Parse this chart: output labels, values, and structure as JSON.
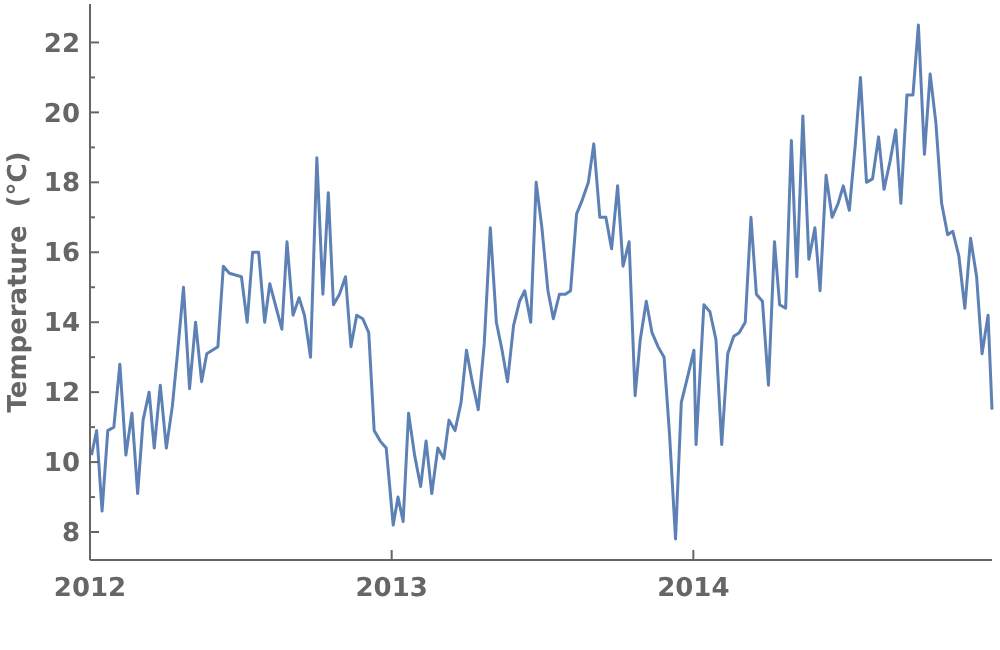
{
  "chart_data": {
    "type": "line",
    "ylabel": "Temperature  (°C)",
    "xlim": [
      2012,
      2014.99
    ],
    "xticks": [
      2012,
      2013,
      2014
    ],
    "ylim": [
      7.2,
      23.1
    ],
    "yticks": [
      8,
      {
        "value": 9,
        "label": null
      },
      10,
      {
        "value": 11,
        "label": null
      },
      12,
      {
        "value": 13,
        "label": null
      },
      14,
      {
        "value": 15,
        "label": null
      },
      16,
      {
        "value": 17,
        "label": null
      },
      18,
      {
        "value": 19,
        "label": null
      },
      20,
      {
        "value": 21,
        "label": null
      },
      22
    ],
    "series": [
      {
        "color": "#5e81b5",
        "x": [
          2012.005,
          2012.022,
          2012.04,
          2012.059,
          2012.079,
          2012.099,
          2012.119,
          2012.139,
          2012.158,
          2012.176,
          2012.196,
          2012.213,
          2012.233,
          2012.253,
          2012.273,
          2012.29,
          2012.31,
          2012.33,
          2012.35,
          2012.37,
          2012.387,
          2012.424,
          2012.442,
          2012.462,
          2012.502,
          2012.521,
          2012.539,
          2012.559,
          2012.579,
          2012.596,
          2012.636,
          2012.653,
          2012.673,
          2012.693,
          2012.711,
          2012.731,
          2012.752,
          2012.772,
          2012.79,
          2012.807,
          2012.827,
          2012.847,
          2012.865,
          2012.884,
          2012.904,
          2012.924,
          2012.942,
          2012.962,
          2012.982,
          2013.005,
          2013.021,
          2013.038,
          2013.056,
          2013.076,
          2013.096,
          2013.114,
          2013.133,
          2013.153,
          2013.173,
          2013.19,
          2013.21,
          2013.23,
          2013.248,
          2013.267,
          2013.287,
          2013.307,
          2013.327,
          2013.347,
          2013.366,
          2013.384,
          2013.404,
          2013.424,
          2013.441,
          2013.461,
          2013.479,
          2013.498,
          2013.518,
          2013.536,
          2013.556,
          2013.576,
          2013.593,
          2013.613,
          2013.632,
          2013.652,
          2013.67,
          2013.69,
          2013.71,
          2013.729,
          2013.749,
          2013.767,
          2013.787,
          2013.807,
          2013.824,
          2013.844,
          2013.863,
          2013.883,
          2013.903,
          2013.921,
          2013.941,
          2013.96,
          2013.98,
          2014.002,
          2014.009,
          2014.035,
          2014.055,
          2014.075,
          2014.094,
          2014.114,
          2014.134,
          2014.152,
          2014.172,
          2014.191,
          2014.209,
          2014.229,
          2014.249,
          2014.269,
          2014.286,
          2014.306,
          2014.325,
          2014.343,
          2014.363,
          2014.383,
          2014.403,
          2014.42,
          2014.44,
          2014.46,
          2014.48,
          2014.497,
          2014.517,
          2014.537,
          2014.554,
          2014.574,
          2014.594,
          2014.614,
          2014.632,
          2014.652,
          2014.671,
          2014.688,
          2014.708,
          2014.728,
          2014.746,
          2014.766,
          2014.785,
          2014.804,
          2014.823,
          2014.843,
          2014.86,
          2014.88,
          2014.9,
          2014.919,
          2014.939,
          2014.957,
          2014.977,
          2014.99
        ],
        "values": [
          10.2,
          10.9,
          8.6,
          10.9,
          11.0,
          12.8,
          10.2,
          11.4,
          9.1,
          11.2,
          12.0,
          10.4,
          12.2,
          10.4,
          11.6,
          13.1,
          15.0,
          12.1,
          14.0,
          12.3,
          13.1,
          13.3,
          15.6,
          15.4,
          15.3,
          14.0,
          16.0,
          16.0,
          14.0,
          15.1,
          13.8,
          16.3,
          14.2,
          14.7,
          14.2,
          13.0,
          18.7,
          14.8,
          17.7,
          14.5,
          14.8,
          15.3,
          13.3,
          14.2,
          14.1,
          13.7,
          10.9,
          10.6,
          10.4,
          8.2,
          9.0,
          8.3,
          11.4,
          10.2,
          9.3,
          10.6,
          9.1,
          10.4,
          10.1,
          11.2,
          10.9,
          11.7,
          13.2,
          12.3,
          11.5,
          13.4,
          16.7,
          14.0,
          13.2,
          12.3,
          13.9,
          14.6,
          14.9,
          14.0,
          18.0,
          16.7,
          14.9,
          14.1,
          14.8,
          14.8,
          14.9,
          17.1,
          17.5,
          18.0,
          19.1,
          17.0,
          17.0,
          16.1,
          17.9,
          15.6,
          16.3,
          11.9,
          13.5,
          14.6,
          13.7,
          13.3,
          13.0,
          10.8,
          7.8,
          11.7,
          12.4,
          13.2,
          10.5,
          14.5,
          14.3,
          13.5,
          10.5,
          13.1,
          13.6,
          13.7,
          14.0,
          17.0,
          14.8,
          14.6,
          12.2,
          16.3,
          14.5,
          14.4,
          19.2,
          15.3,
          19.9,
          15.8,
          16.7,
          14.9,
          18.2,
          17.0,
          17.4,
          17.9,
          17.2,
          19.1,
          21.0,
          18.0,
          18.1,
          19.3,
          17.8,
          18.6,
          19.5,
          17.4,
          20.5,
          20.5,
          22.5,
          18.8,
          21.1,
          19.7,
          17.4,
          16.5,
          16.6,
          15.9,
          14.4,
          16.4,
          15.3,
          13.1,
          14.2,
          11.5
        ]
      }
    ]
  }
}
